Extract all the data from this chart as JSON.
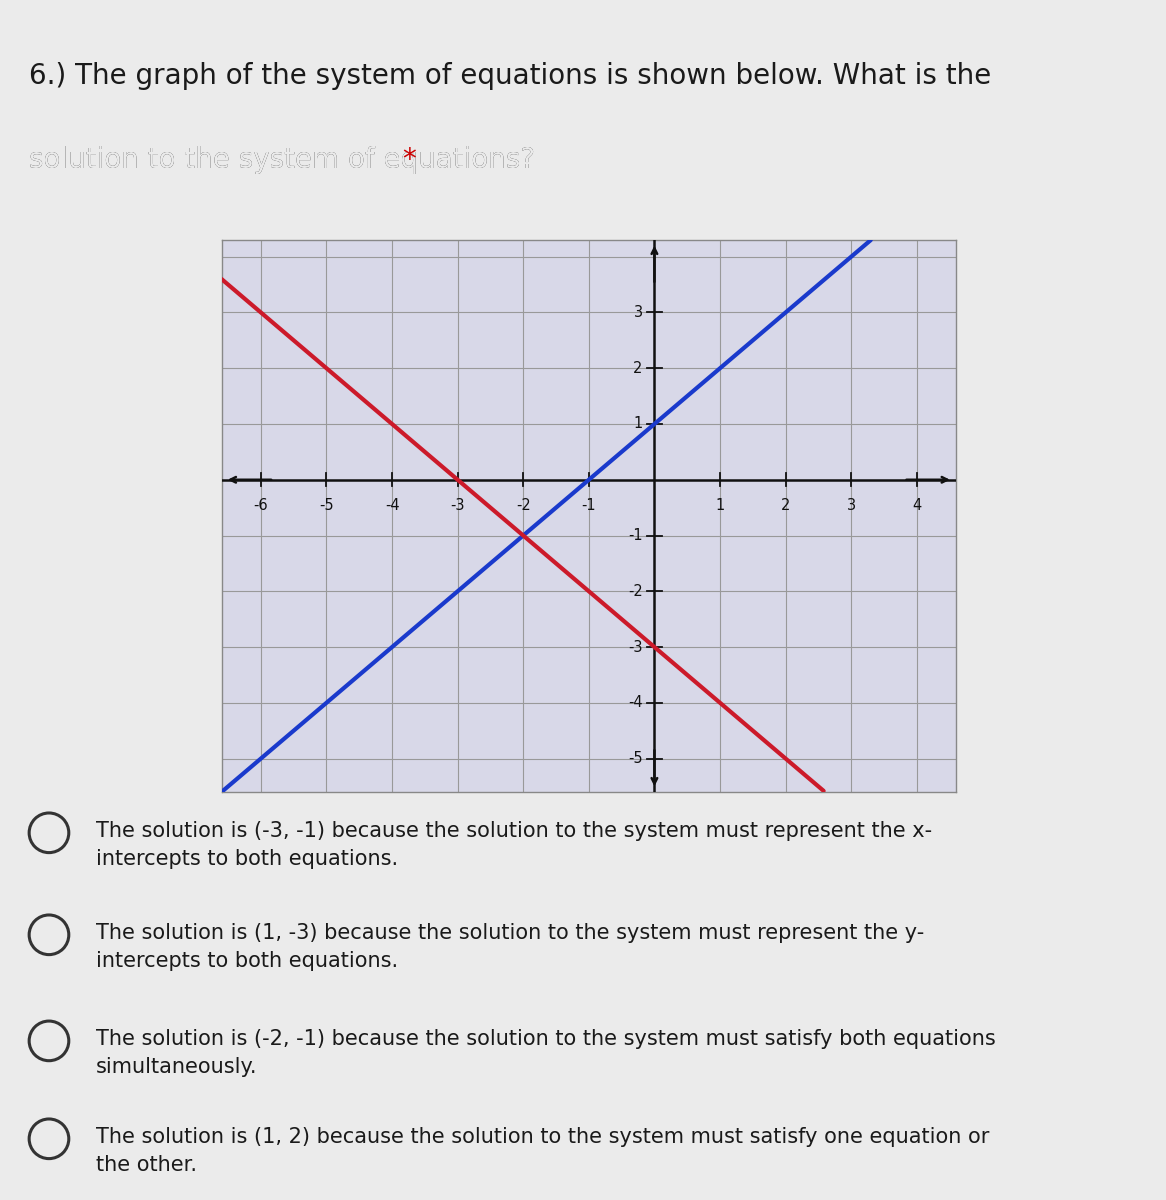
{
  "background_color": "#ebebeb",
  "graph_bg_color": "#d8d8e8",
  "grid_color": "#999999",
  "axis_color": "#111111",
  "blue_line": {
    "slope": 1,
    "intercept": 1,
    "color": "#1a3acc",
    "linewidth": 3.0
  },
  "red_line": {
    "slope": -1,
    "intercept": -3,
    "color": "#cc1a2a",
    "linewidth": 3.0
  },
  "xlim": [
    -6.6,
    4.6
  ],
  "ylim": [
    -5.6,
    4.3
  ],
  "xtick_vals": [
    -6,
    -5,
    -4,
    -3,
    -2,
    -1,
    1,
    2,
    3,
    4
  ],
  "ytick_vals": [
    3,
    2,
    1,
    -1,
    -2,
    -3,
    -4,
    -5
  ],
  "title_line1": "6.) The graph of the system of equations is shown below. What is the",
  "title_line2": "solution to the system of equations? ",
  "title_asterisk": "*",
  "title_fontsize": 20,
  "title_color": "#1a1a1a",
  "asterisk_color": "#cc0000",
  "answer_choices": [
    "The solution is (-3, -1) because the solution to the system must represent the x-\nintercepts to both equations.",
    "The solution is (1, -3) because the solution to the system must represent the y-\nintercepts to both equations.",
    "The solution is (-2, -1) because the solution to the system must satisfy both equations\nsimultaneously.",
    "The solution is (1, 2) because the solution to the system must satisfy one equation or\nthe other."
  ],
  "choice_fontsize": 15,
  "choice_color": "#1a1a1a",
  "circle_color": "#333333",
  "green_bar_color": "#7abf8a",
  "top_bar_color": "#e06060"
}
